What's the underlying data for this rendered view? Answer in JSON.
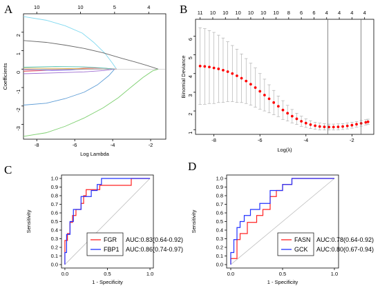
{
  "chart_data": [
    {
      "panel": "A",
      "type": "line",
      "xlabel": "Log Lambda",
      "ylabel": "Coefficients",
      "xlim": [
        -8.7,
        -1.2
      ],
      "ylim": [
        -3.8,
        3.0
      ],
      "xticks": [
        -8,
        -6,
        -4,
        -2
      ],
      "yticks": [
        -3,
        -2,
        -1,
        0,
        1,
        2
      ],
      "top_axis": {
        "positions": [
          -8,
          -5.7,
          -3.9,
          -2.1
        ],
        "labels": [
          "10",
          "10",
          "5",
          "4"
        ]
      },
      "grid": false,
      "series": [
        {
          "color": "#7fd9f0",
          "x": [
            -8.7,
            -7.5,
            -6.5,
            -5.6,
            -5.0,
            -4.4,
            -4.0,
            -3.8
          ],
          "y": [
            2.85,
            2.65,
            2.35,
            1.95,
            1.45,
            0.85,
            0.3,
            0.0
          ]
        },
        {
          "color": "#666666",
          "x": [
            -8.7,
            -7.5,
            -6.5,
            -5.5,
            -4.5,
            -3.5,
            -2.8,
            -2.2,
            -1.6
          ],
          "y": [
            1.55,
            1.45,
            1.3,
            1.12,
            0.88,
            0.58,
            0.38,
            0.2,
            0.0
          ]
        },
        {
          "color": "#7ccf6e",
          "x": [
            -8.7,
            -7.5,
            -6.5,
            -5.5,
            -4.5,
            -3.7,
            -3.0,
            -2.4,
            -1.9,
            -1.6
          ],
          "y": [
            -3.65,
            -3.45,
            -3.1,
            -2.65,
            -2.1,
            -1.55,
            -0.95,
            -0.45,
            -0.1,
            0.0
          ]
        },
        {
          "color": "#5b9bd5",
          "x": [
            -8.7,
            -7.5,
            -6.5,
            -5.5,
            -4.8,
            -4.2,
            -3.9
          ],
          "y": [
            -1.95,
            -1.85,
            -1.6,
            -1.25,
            -0.85,
            -0.35,
            0.0
          ]
        },
        {
          "color": "#e0555a",
          "x": [
            -8.7,
            -7.0,
            -5.5,
            -4.5,
            -3.8
          ],
          "y": [
            -0.12,
            -0.05,
            0.05,
            0.05,
            0.0
          ]
        },
        {
          "color": "#9c6ad0",
          "x": [
            -8.7,
            -7.0,
            -5.5,
            -4.5,
            -3.9
          ],
          "y": [
            -0.25,
            -0.2,
            -0.15,
            -0.08,
            0.0
          ]
        },
        {
          "color": "#4cc0b0",
          "x": [
            -8.7,
            -7.0,
            -5.5,
            -4.4,
            -3.9
          ],
          "y": [
            0.1,
            0.14,
            0.12,
            0.05,
            0.0
          ]
        },
        {
          "color": "#e6b04a",
          "x": [
            -8.7,
            -7.0,
            -5.8,
            -5.0
          ],
          "y": [
            0.05,
            0.04,
            0.02,
            0.0
          ]
        },
        {
          "color": "#ff66cc",
          "x": [
            -8.7,
            -7.0,
            -6.0,
            -5.2
          ],
          "y": [
            -0.05,
            -0.06,
            -0.03,
            0.0
          ]
        },
        {
          "color": "#8888ff",
          "x": [
            -8.7,
            -7.2,
            -6.2,
            -5.6
          ],
          "y": [
            0.0,
            -0.08,
            -0.05,
            0.0
          ]
        },
        {
          "color": "#b0b0b0",
          "x": [
            -8.7,
            -6.5,
            -4.2
          ],
          "y": [
            -0.04,
            -0.02,
            0.0
          ]
        }
      ]
    },
    {
      "panel": "B",
      "type": "scatter",
      "xlabel": "Log(λ)",
      "ylabel": "Binomial Deviance",
      "xlim": [
        -8.8,
        -1.05
      ],
      "ylim": [
        0.75,
        6.9
      ],
      "xticks": [
        -8,
        -6,
        -4,
        -2
      ],
      "yticks": [
        1,
        2,
        3,
        4,
        5,
        6
      ],
      "top_axis": {
        "positions": [
          -8.6,
          -8.05,
          -7.5,
          -6.95,
          -6.4,
          -5.85,
          -5.3,
          -4.75,
          -4.2,
          -3.65,
          -3.1,
          -2.55,
          -2.0,
          -1.45
        ],
        "labels": [
          "11",
          "10",
          "10",
          "10",
          "10",
          "10",
          "10",
          "8",
          "6",
          "6",
          "4",
          "4",
          "4",
          "4"
        ]
      },
      "vlines": [
        -3.05,
        -1.6
      ],
      "point_color": "#ff0000",
      "error_bar_color": "#a6a6a6",
      "x": [
        -8.6,
        -8.4,
        -8.2,
        -8.0,
        -7.8,
        -7.6,
        -7.4,
        -7.2,
        -7.0,
        -6.8,
        -6.6,
        -6.4,
        -6.2,
        -6.0,
        -5.8,
        -5.6,
        -5.4,
        -5.2,
        -5.0,
        -4.8,
        -4.6,
        -4.4,
        -4.2,
        -4.0,
        -3.8,
        -3.6,
        -3.4,
        -3.2,
        -3.0,
        -2.8,
        -2.6,
        -2.4,
        -2.2,
        -2.0,
        -1.8,
        -1.6,
        -1.4,
        -1.3
      ],
      "y": [
        4.4,
        4.38,
        4.35,
        4.3,
        4.25,
        4.18,
        4.1,
        4.0,
        3.88,
        3.75,
        3.6,
        3.43,
        3.25,
        3.05,
        2.85,
        2.65,
        2.45,
        2.25,
        2.05,
        1.88,
        1.72,
        1.58,
        1.45,
        1.35,
        1.27,
        1.21,
        1.17,
        1.15,
        1.14,
        1.14,
        1.15,
        1.17,
        1.2,
        1.24,
        1.29,
        1.34,
        1.39,
        1.42
      ],
      "upper": [
        6.45,
        6.4,
        6.3,
        6.2,
        6.05,
        5.9,
        5.7,
        5.5,
        5.3,
        5.05,
        4.8,
        4.55,
        4.3,
        4.0,
        3.7,
        3.4,
        3.1,
        2.8,
        2.55,
        2.3,
        2.08,
        1.88,
        1.72,
        1.58,
        1.48,
        1.4,
        1.35,
        1.32,
        1.3,
        1.3,
        1.31,
        1.33,
        1.36,
        1.4,
        1.44,
        1.49,
        1.53,
        1.56
      ],
      "lower": [
        2.35,
        2.36,
        2.4,
        2.4,
        2.45,
        2.46,
        2.5,
        2.5,
        2.46,
        2.45,
        2.4,
        2.31,
        2.2,
        2.1,
        2.0,
        1.9,
        1.8,
        1.7,
        1.55,
        1.46,
        1.36,
        1.28,
        1.18,
        1.12,
        1.06,
        1.02,
        0.99,
        0.98,
        0.98,
        0.98,
        0.99,
        1.01,
        1.04,
        1.08,
        1.14,
        1.19,
        1.25,
        1.28
      ]
    },
    {
      "panel": "C",
      "type": "line",
      "xlabel": "1 - Specificity",
      "ylabel": "Sensitivity",
      "xlim": [
        -0.04,
        1.04
      ],
      "ylim": [
        -0.04,
        1.04
      ],
      "xticks": [
        0.0,
        0.5,
        1.0
      ],
      "xticklabels": [
        "0.0",
        "0.5",
        "1.0"
      ],
      "yticks": [
        0.0,
        0.1,
        0.2,
        0.3,
        0.4,
        0.5,
        0.6,
        0.7,
        0.8,
        0.9,
        1.0
      ],
      "yticklabels": [
        "0.0",
        "0.1",
        "0.2",
        "0.3",
        "0.4",
        "0.5",
        "0.6",
        "0.7",
        "0.8",
        "0.9",
        "1.0"
      ],
      "diagonal": true,
      "series": [
        {
          "name": "FGR",
          "auc_text": "AUC:0.83(0.64-0.92)",
          "color": "#ff2020",
          "x": [
            0,
            0,
            0.03,
            0.03,
            0.06,
            0.06,
            0.09,
            0.09,
            0.13,
            0.13,
            0.19,
            0.19,
            0.22,
            0.22,
            0.25,
            0.25,
            0.41,
            0.41,
            0.78,
            0.78,
            1.0
          ],
          "y": [
            0,
            0.28,
            0.28,
            0.36,
            0.36,
            0.49,
            0.49,
            0.57,
            0.57,
            0.64,
            0.64,
            0.71,
            0.71,
            0.8,
            0.8,
            0.87,
            0.87,
            0.92,
            0.92,
            1.0,
            1.0
          ]
        },
        {
          "name": "FBP1",
          "auc_text": "AUC:0.86(0.74-0.97)",
          "color": "#2030ff",
          "x": [
            0,
            0,
            0.02,
            0.02,
            0.06,
            0.06,
            0.1,
            0.1,
            0.16,
            0.16,
            0.19,
            0.19,
            0.31,
            0.31,
            0.38,
            0.38,
            0.43,
            0.43,
            1.0
          ],
          "y": [
            0,
            0.14,
            0.14,
            0.35,
            0.35,
            0.5,
            0.5,
            0.64,
            0.64,
            0.64,
            0.64,
            0.79,
            0.79,
            0.86,
            0.86,
            0.93,
            0.93,
            1.0,
            1.0
          ]
        }
      ]
    },
    {
      "panel": "D",
      "type": "line",
      "xlabel": "1 - Specificity",
      "ylabel": "Sensitivity",
      "xlim": [
        -0.04,
        1.04
      ],
      "ylim": [
        -0.04,
        1.04
      ],
      "xticks": [
        0.0,
        0.5,
        1.0
      ],
      "xticklabels": [
        "0.0",
        "0.5",
        "1.0"
      ],
      "yticks": [
        0.0,
        0.1,
        0.2,
        0.3,
        0.4,
        0.5,
        0.6,
        0.7,
        0.8,
        0.9,
        1.0
      ],
      "yticklabels": [
        "0.0",
        "0.1",
        "0.2",
        "0.3",
        "0.4",
        "0.5",
        "0.6",
        "0.7",
        "0.8",
        "0.9",
        "1.0"
      ],
      "diagonal": true,
      "series": [
        {
          "name": "FASN",
          "auc_text": "AUC:0.78(0.64-0.92)",
          "color": "#ff2020",
          "x": [
            0,
            0,
            0.06,
            0.06,
            0.09,
            0.09,
            0.16,
            0.16,
            0.25,
            0.25,
            0.31,
            0.31,
            0.38,
            0.38,
            0.44,
            0.44,
            0.5,
            0.5,
            0.59,
            0.59,
            1.0
          ],
          "y": [
            0,
            0.07,
            0.07,
            0.29,
            0.29,
            0.36,
            0.36,
            0.49,
            0.49,
            0.57,
            0.57,
            0.64,
            0.64,
            0.79,
            0.79,
            0.86,
            0.86,
            0.93,
            0.93,
            1.0,
            1.0
          ]
        },
        {
          "name": "GCK",
          "auc_text": "AUC:0.80(0.67-0.94)",
          "color": "#2030ff",
          "x": [
            0,
            0,
            0.03,
            0.03,
            0.06,
            0.06,
            0.09,
            0.09,
            0.13,
            0.13,
            0.19,
            0.19,
            0.28,
            0.28,
            0.38,
            0.38,
            0.5,
            0.5,
            0.59,
            0.59,
            1.0
          ],
          "y": [
            0,
            0.14,
            0.14,
            0.29,
            0.29,
            0.43,
            0.43,
            0.5,
            0.5,
            0.57,
            0.57,
            0.64,
            0.64,
            0.71,
            0.71,
            0.86,
            0.86,
            0.93,
            0.93,
            1.0,
            1.0
          ]
        }
      ]
    }
  ]
}
